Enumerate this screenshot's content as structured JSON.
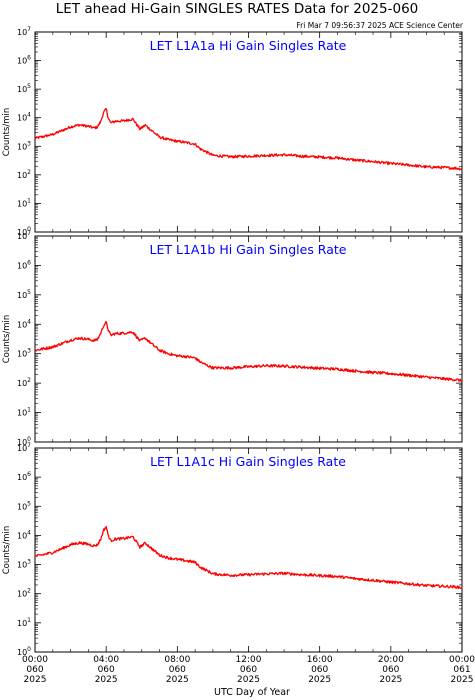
{
  "header": {
    "title": "LET ahead Hi-Gain SINGLES RATES Data for 2025-060",
    "timestamp": "Fri Mar  7 09:56:37 2025 ACE Science Center"
  },
  "chart_data": [
    {
      "type": "line",
      "title": "LET L1A1a Hi Gain Singles Rate",
      "ylabel": "Counts/min",
      "xlabel": "",
      "yscale": "log",
      "ylim": [
        1,
        10000000
      ],
      "xlim": [
        0,
        24
      ],
      "color": "#ff0000",
      "series": [
        {
          "x": [
            0,
            1,
            1.5,
            2,
            2.5,
            3,
            3.3,
            3.5,
            3.7,
            3.85,
            4.0,
            4.1,
            4.25,
            4.5,
            5,
            5.5,
            5.9,
            6.2,
            6.5,
            7,
            7.5,
            8,
            8.5,
            9,
            9.3,
            9.6,
            10,
            11,
            12,
            13,
            14,
            15,
            16,
            17,
            18,
            19,
            20,
            21,
            22,
            23,
            23.7,
            24
          ],
          "y": [
            1900,
            2600,
            3500,
            4800,
            5600,
            5000,
            4400,
            4700,
            7500,
            15000,
            20000,
            11000,
            6500,
            7500,
            7800,
            9000,
            4000,
            5500,
            3800,
            2100,
            1700,
            1500,
            1350,
            1200,
            800,
            650,
            480,
            430,
            450,
            480,
            500,
            450,
            420,
            390,
            330,
            290,
            250,
            220,
            190,
            180,
            170,
            160
          ]
        }
      ]
    },
    {
      "type": "line",
      "title": "LET L1A1b Hi Gain Singles Rate",
      "ylabel": "Counts/min",
      "xlabel": "",
      "yscale": "log",
      "ylim": [
        1,
        10000000
      ],
      "xlim": [
        0,
        24
      ],
      "color": "#ff0000",
      "series": [
        {
          "x": [
            0,
            1,
            1.5,
            2,
            2.5,
            3,
            3.3,
            3.5,
            3.7,
            3.85,
            4.0,
            4.1,
            4.25,
            4.5,
            5,
            5.5,
            5.9,
            6.2,
            6.5,
            7,
            7.5,
            8,
            8.5,
            9,
            9.3,
            9.6,
            10,
            11,
            12,
            13,
            14,
            15,
            16,
            17,
            18,
            19,
            20,
            21,
            22,
            23,
            23.7,
            24
          ],
          "y": [
            1300,
            1700,
            2200,
            2900,
            3400,
            3100,
            2800,
            3000,
            5000,
            9000,
            11500,
            7000,
            4200,
            4800,
            5000,
            5500,
            2700,
            3400,
            2300,
            1300,
            1000,
            850,
            800,
            720,
            520,
            420,
            330,
            330,
            360,
            390,
            380,
            350,
            320,
            300,
            260,
            230,
            210,
            185,
            160,
            140,
            130,
            120
          ]
        }
      ]
    },
    {
      "type": "line",
      "title": "LET L1A1c Hi Gain Singles Rate",
      "ylabel": "Counts/min",
      "xlabel": "UTC Day of Year",
      "yscale": "log",
      "ylim": [
        1,
        10000000
      ],
      "xlim": [
        0,
        24
      ],
      "color": "#ff0000",
      "series": [
        {
          "x": [
            0,
            1,
            1.5,
            2,
            2.5,
            3,
            3.3,
            3.5,
            3.7,
            3.85,
            4.0,
            4.1,
            4.25,
            4.5,
            5,
            5.5,
            5.9,
            6.2,
            6.5,
            7,
            7.5,
            8,
            8.5,
            9,
            9.3,
            9.6,
            10,
            11,
            12,
            13,
            14,
            15,
            16,
            17,
            18,
            19,
            20,
            21,
            22,
            23,
            23.7,
            24
          ],
          "y": [
            1900,
            2600,
            3500,
            4800,
            5600,
            5000,
            4400,
            4700,
            7500,
            15000,
            20000,
            11000,
            6500,
            7500,
            7800,
            9000,
            4000,
            5500,
            3800,
            2100,
            1700,
            1500,
            1350,
            1200,
            800,
            650,
            480,
            430,
            450,
            480,
            500,
            450,
            420,
            390,
            330,
            290,
            250,
            220,
            190,
            180,
            170,
            160
          ]
        }
      ]
    }
  ],
  "y_ticks": [
    {
      "base": "10",
      "exp": "0"
    },
    {
      "base": "10",
      "exp": "1"
    },
    {
      "base": "10",
      "exp": "2"
    },
    {
      "base": "10",
      "exp": "3"
    },
    {
      "base": "10",
      "exp": "4"
    },
    {
      "base": "10",
      "exp": "5"
    },
    {
      "base": "10",
      "exp": "6"
    },
    {
      "base": "10",
      "exp": "7"
    }
  ],
  "x_ticks": [
    {
      "hour": 0,
      "time": "00:00",
      "doy": "060",
      "year": "2025"
    },
    {
      "hour": 4,
      "time": "04:00",
      "doy": "060",
      "year": "2025"
    },
    {
      "hour": 8,
      "time": "08:00",
      "doy": "060",
      "year": "2025"
    },
    {
      "hour": 12,
      "time": "12:00",
      "doy": "060",
      "year": "2025"
    },
    {
      "hour": 16,
      "time": "16:00",
      "doy": "060",
      "year": "2025"
    },
    {
      "hour": 20,
      "time": "20:00",
      "doy": "060",
      "year": "2025"
    },
    {
      "hour": 24,
      "time": "00:00",
      "doy": "061",
      "year": "2025"
    }
  ]
}
